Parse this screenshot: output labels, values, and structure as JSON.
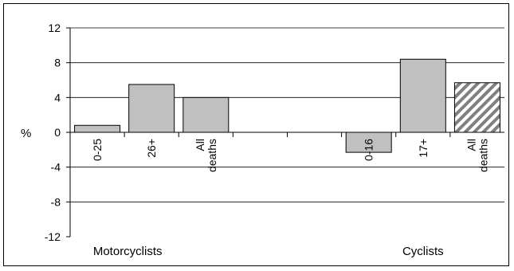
{
  "chart_data": {
    "type": "bar",
    "ylabel": "%",
    "ylim": [
      -12,
      12
    ],
    "yticks": [
      12,
      8,
      4,
      0,
      -4,
      -8,
      -12
    ],
    "grid": true,
    "groups": [
      {
        "name": "Motorcyclists",
        "bars": [
          {
            "label": [
              "0-25"
            ],
            "value": 0.8,
            "pattern": "solid"
          },
          {
            "label": [
              "26+"
            ],
            "value": 5.5,
            "pattern": "solid"
          },
          {
            "label": [
              "All",
              "deaths"
            ],
            "value": 4.0,
            "pattern": "solid"
          }
        ]
      },
      {
        "name": "Cyclists",
        "bars": [
          {
            "label": [
              "0-16"
            ],
            "value": -2.3,
            "pattern": "solid"
          },
          {
            "label": [
              "17+"
            ],
            "value": 8.4,
            "pattern": "solid"
          },
          {
            "label": [
              "All",
              "deaths"
            ],
            "value": 5.7,
            "pattern": "hatched"
          }
        ]
      }
    ],
    "colors": {
      "bar_fill": "#c0c0c0",
      "bar_stroke": "#000000",
      "hatch": "#808080"
    }
  }
}
